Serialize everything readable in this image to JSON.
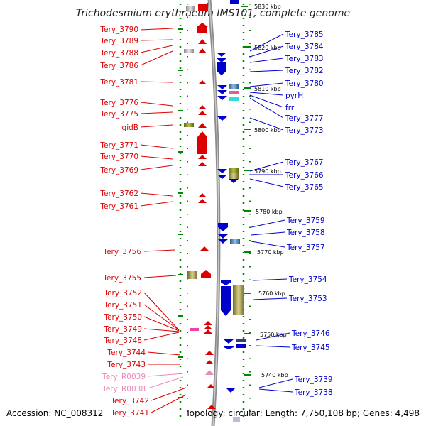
{
  "header": {
    "title": "Trichodesmium erythraeum IMS101, complete genome"
  },
  "footer": {
    "accession": "Accession: NC_008312",
    "summary": "Topology: circular; Length: 7,750,108 bp; Genes: 4,498"
  },
  "colors": {
    "left_label": "#dd0000",
    "right_label": "#0000cc",
    "rna_label": "#ee88bb",
    "axis": "#888888",
    "tick": "#008800"
  },
  "scale_labels": [
    "5830 kbp",
    "5820 kbp",
    "5810 kbp",
    "5800 kbp",
    "5790 kbp",
    "5780 kbp",
    "5770 kbp",
    "5760 kbp",
    "5750 kbp",
    "5740 kbp"
  ],
  "left_genes": [
    {
      "label": "Tery_3790"
    },
    {
      "label": "Tery_3789"
    },
    {
      "label": "Tery_3788"
    },
    {
      "label": "Tery_3786"
    },
    {
      "label": "Tery_3781"
    },
    {
      "label": "Tery_3776"
    },
    {
      "label": "Tery_3775"
    },
    {
      "label": "gidB"
    },
    {
      "label": "Tery_3771"
    },
    {
      "label": "Tery_3770"
    },
    {
      "label": "Tery_3769"
    },
    {
      "label": "Tery_3762"
    },
    {
      "label": "Tery_3761"
    },
    {
      "label": "Tery_3756"
    },
    {
      "label": "Tery_3755"
    },
    {
      "label": "Tery_3752"
    },
    {
      "label": "Tery_3751"
    },
    {
      "label": "Tery_3750"
    },
    {
      "label": "Tery_3749"
    },
    {
      "label": "Tery_3748"
    },
    {
      "label": "Tery_3744"
    },
    {
      "label": "Tery_3743"
    },
    {
      "label": "Tery_R0039"
    },
    {
      "label": "Tery_R0038"
    },
    {
      "label": "Tery_3742"
    },
    {
      "label": "Tery_3741"
    }
  ],
  "right_genes": [
    {
      "label": "Tery_3785"
    },
    {
      "label": "Tery_3784"
    },
    {
      "label": "Tery_3783"
    },
    {
      "label": "Tery_3782"
    },
    {
      "label": "Tery_3780"
    },
    {
      "label": "pyrH"
    },
    {
      "label": "frr"
    },
    {
      "label": "Tery_3777"
    },
    {
      "label": "Tery_3773"
    },
    {
      "label": "Tery_3767"
    },
    {
      "label": "Tery_3766"
    },
    {
      "label": "Tery_3765"
    },
    {
      "label": "Tery_3759"
    },
    {
      "label": "Tery_3758"
    },
    {
      "label": "Tery_3757"
    },
    {
      "label": "Tery_3754"
    },
    {
      "label": "Tery_3753"
    },
    {
      "label": "Tery_3746"
    },
    {
      "label": "Tery_3745"
    },
    {
      "label": "Tery_3739"
    },
    {
      "label": "Tery_3738"
    }
  ]
}
